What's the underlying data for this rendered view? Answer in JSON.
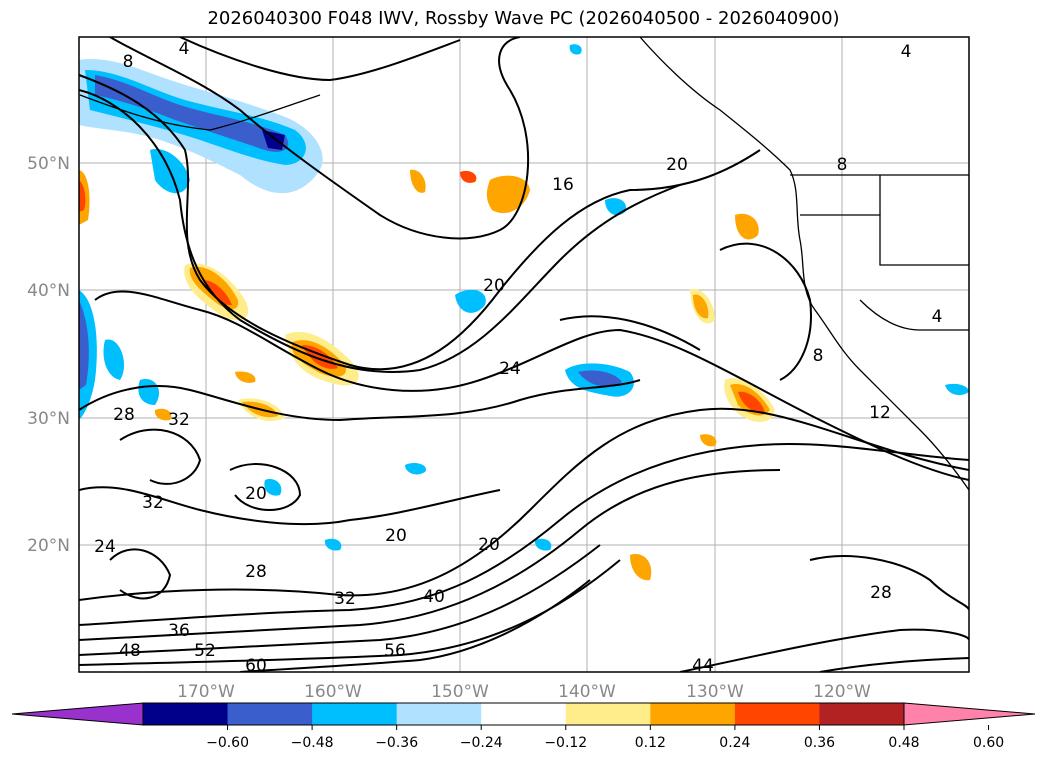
{
  "title": "2026040300 F048 IWV, Rossby Wave PC (2026040500 - 2026040900)",
  "lat_labels": [
    "50°N",
    "40°N",
    "30°N",
    "20°N"
  ],
  "lon_labels": [
    "170°W",
    "160°W",
    "150°W",
    "140°W",
    "130°W",
    "120°W"
  ],
  "contour_labels": [
    "4",
    "8",
    "16",
    "20",
    "24",
    "28",
    "32",
    "36",
    "48",
    "52",
    "56",
    "60",
    "40",
    "44",
    "20",
    "32",
    "28",
    "24",
    "28",
    "32",
    "20",
    "20",
    "8",
    "4",
    "8",
    "12",
    "20",
    "4"
  ],
  "colorbar": {
    "ticks": [
      "−0.60",
      "−0.48",
      "−0.36",
      "−0.24",
      "−0.12",
      "0.12",
      "0.24",
      "0.36",
      "0.48",
      "0.60"
    ],
    "colors": [
      "#9932cc",
      "#00008b",
      "#3a5fcd",
      "#00bfff",
      "#b0e2ff",
      "#ffffff",
      "#ffec8b",
      "#ffa500",
      "#ff4500",
      "#b22222",
      "#ff82ab"
    ]
  }
}
